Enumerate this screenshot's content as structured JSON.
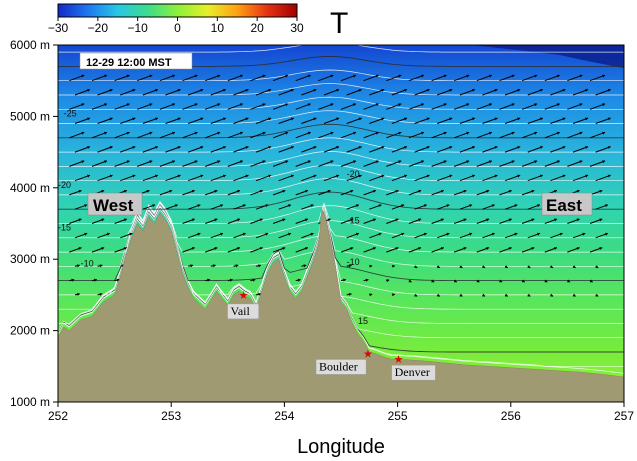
{
  "chart_data": {
    "type": "heatmap",
    "variable": "T",
    "timestamp": "12-29 12:00 MST",
    "xlabel": "Longitude",
    "xlim": [
      252,
      257
    ],
    "x_ticks": [
      "252",
      "253",
      "254",
      "255",
      "256",
      "257"
    ],
    "ylim": [
      1000,
      6000
    ],
    "y_ticks": [
      "1000 m",
      "2000 m",
      "3000 m",
      "4000 m",
      "5000 m",
      "6000 m"
    ],
    "colorbar": {
      "range": [
        -30,
        30
      ],
      "ticks": [
        "−30",
        "−20",
        "−10",
        "0",
        "10",
        "20",
        "30"
      ],
      "colors": [
        "#1428c8",
        "#1e78f0",
        "#28c8e6",
        "#3cdc8c",
        "#8cf03c",
        "#e6f028",
        "#ffa014",
        "#e63214",
        "#a00000"
      ]
    },
    "region_labels": [
      "West",
      "East"
    ],
    "places": [
      {
        "name": "Vail",
        "lon": 253.63,
        "elev": 2500
      },
      {
        "name": "Boulder",
        "lon": 254.73,
        "elev": 1680
      },
      {
        "name": "Denver",
        "lon": 255.0,
        "elev": 1600
      }
    ],
    "contour_labels": [
      "-25",
      "-20",
      "-20",
      "-15",
      "-15",
      "-10",
      "-10",
      "15"
    ],
    "terrain": {
      "lon": [
        252.0,
        252.05,
        252.1,
        252.2,
        252.3,
        252.4,
        252.5,
        252.55,
        252.6,
        252.65,
        252.7,
        252.75,
        252.8,
        252.85,
        252.9,
        252.95,
        253.0,
        253.05,
        253.1,
        253.15,
        253.2,
        253.3,
        253.4,
        253.5,
        253.55,
        253.6,
        253.63,
        253.7,
        253.75,
        253.8,
        253.85,
        253.9,
        253.95,
        254.0,
        254.05,
        254.1,
        254.15,
        254.2,
        254.25,
        254.3,
        254.33,
        254.36,
        254.4,
        254.45,
        254.5,
        254.55,
        254.6,
        254.65,
        254.7,
        254.75,
        254.8,
        254.85,
        254.9,
        254.95,
        255.0,
        255.2,
        255.4,
        255.6,
        255.8,
        256.0,
        256.2,
        256.4,
        256.6,
        256.8,
        257.0
      ],
      "elev": [
        1900,
        2050,
        2000,
        2150,
        2200,
        2400,
        2500,
        2750,
        3050,
        3300,
        3500,
        3400,
        3600,
        3500,
        3650,
        3550,
        3400,
        3100,
        2800,
        2600,
        2450,
        2300,
        2550,
        2350,
        2500,
        2550,
        2500,
        2450,
        2300,
        2550,
        2800,
        2950,
        3000,
        2750,
        2550,
        2450,
        2550,
        2750,
        2950,
        3200,
        3700,
        3600,
        3300,
        2900,
        2400,
        2300,
        2100,
        1950,
        1850,
        1700,
        1680,
        1650,
        1620,
        1600,
        1600,
        1580,
        1550,
        1520,
        1500,
        1480,
        1460,
        1440,
        1420,
        1390,
        1350
      ]
    }
  }
}
